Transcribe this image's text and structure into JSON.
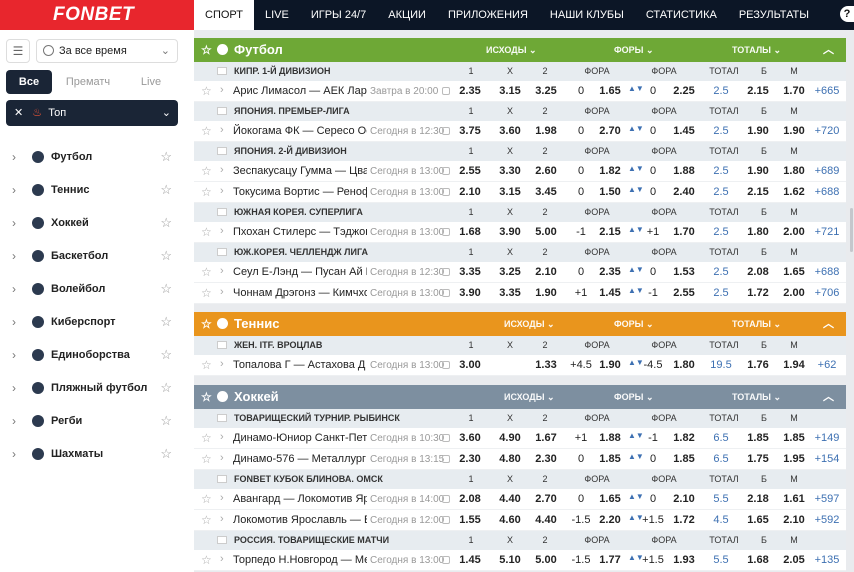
{
  "brand": {
    "name": "FONBET",
    "accent": "#e8262d",
    "dark": "#0c1626"
  },
  "nav": [
    "СПОРТ",
    "LIVE",
    "ИГРЫ 24/7",
    "АКЦИИ",
    "ПРИЛОЖЕНИЯ",
    "НАШИ КЛУБЫ",
    "СТАТИСТИКА",
    "РЕЗУЛЬТАТЫ"
  ],
  "nav_active": "СПОРТ",
  "nav_extra": "?",
  "sidebar": {
    "period": "За все время",
    "tabs": [
      "Все",
      "Прематч",
      "Live"
    ],
    "active_tab": "Все",
    "top_label": "Топ",
    "sports": [
      "Футбол",
      "Теннис",
      "Хоккей",
      "Баскетбол",
      "Волейбол",
      "Киберспорт",
      "Единоборства",
      "Пляжный футбол",
      "Регби",
      "Шахматы"
    ]
  },
  "headers": {
    "outcomes": "ИСХОДЫ",
    "handicaps": "ФОРЫ",
    "totals": "ТОТАЛЫ"
  },
  "cols": [
    "1",
    "X",
    "2",
    "ФОРА 1",
    "ФОРА 2",
    "ТОТАЛ",
    "Б",
    "М"
  ],
  "sections": [
    {
      "title": "Футбол",
      "color": "#6ea836",
      "leagues": [
        {
          "name": "КИПР. 1-Й ДИВИЗИОН",
          "events": [
            {
              "teams": "Арис Лимасол — АЕК Ларнака",
              "time": "Завтра в 20:00",
              "c1": "2.35",
              "x": "3.15",
              "c2": "3.25",
              "h1": "0",
              "f1": "1.65",
              "h2": "0",
              "f2": "2.25",
              "tot": "2.5",
              "b": "2.15",
              "m": "1.70",
              "more": "+665"
            }
          ]
        },
        {
          "name": "ЯПОНИЯ. ПРЕМЬЕР-ЛИГА",
          "events": [
            {
              "teams": "Йокогама ФК — Сересо Осака",
              "time": "Сегодня в 12:30",
              "c1": "3.75",
              "x": "3.60",
              "c2": "1.98",
              "h1": "0",
              "f1": "2.70",
              "h2": "0",
              "f2": "1.45",
              "tot": "2.5",
              "b": "1.90",
              "m": "1.90",
              "more": "+720"
            }
          ]
        },
        {
          "name": "ЯПОНИЯ. 2-Й ДИВИЗИОН",
          "events": [
            {
              "teams": "Зеспакусацу Гумма — Цвайген",
              "time": "Сегодня в 13:00",
              "c1": "2.55",
              "x": "3.30",
              "c2": "2.60",
              "h1": "0",
              "f1": "1.82",
              "h2": "0",
              "f2": "1.88",
              "tot": "2.5",
              "b": "1.90",
              "m": "1.80",
              "more": "+689"
            },
            {
              "teams": "Токусима Вортис — Ренофа",
              "time": "Сегодня в 13:00",
              "c1": "2.10",
              "x": "3.15",
              "c2": "3.45",
              "h1": "0",
              "f1": "1.50",
              "h2": "0",
              "f2": "2.40",
              "tot": "2.5",
              "b": "2.15",
              "m": "1.62",
              "more": "+688"
            }
          ]
        },
        {
          "name": "ЮЖНАЯ КОРЕЯ. СУПЕРЛИГА",
          "events": [
            {
              "teams": "Пхохан Стилерс — Тэджон Си",
              "time": "Сегодня в 13:00",
              "c1": "1.68",
              "x": "3.90",
              "c2": "5.00",
              "h1": "-1",
              "f1": "2.15",
              "h2": "+1",
              "f2": "1.70",
              "tot": "2.5",
              "b": "1.80",
              "m": "2.00",
              "more": "+721"
            }
          ]
        },
        {
          "name": "ЮЖ.КОРЕЯ. ЧЕЛЛЕНДЖ ЛИГА",
          "events": [
            {
              "teams": "Сеул Е-Лэнд — Пусан Ай Парк",
              "time": "Сегодня в 12:30",
              "c1": "3.35",
              "x": "3.25",
              "c2": "2.10",
              "h1": "0",
              "f1": "2.35",
              "h2": "0",
              "f2": "1.53",
              "tot": "2.5",
              "b": "2.08",
              "m": "1.65",
              "more": "+688"
            },
            {
              "teams": "Чоннам Дрэгонз — Кимчхон",
              "time": "Сегодня в 13:00",
              "c1": "3.90",
              "x": "3.35",
              "c2": "1.90",
              "h1": "+1",
              "f1": "1.45",
              "h2": "-1",
              "f2": "2.55",
              "tot": "2.5",
              "b": "1.72",
              "m": "2.00",
              "more": "+706"
            }
          ]
        }
      ]
    },
    {
      "title": "Теннис",
      "color": "#e9951d",
      "leagues": [
        {
          "name": "ЖЕН. ITF. ВРОЦЛАВ",
          "events": [
            {
              "teams": "Топалова Г — Астахова Д",
              "time": "Сегодня в 13:00",
              "c1": "3.00",
              "x": "",
              "c2": "1.33",
              "h1": "+4.5",
              "f1": "1.90",
              "h2": "-4.5",
              "f2": "1.80",
              "tot": "19.5",
              "b": "1.76",
              "m": "1.94",
              "more": "+62"
            }
          ]
        }
      ]
    },
    {
      "title": "Хоккей",
      "color": "#7d8fa0",
      "leagues": [
        {
          "name": "ТОВАРИЩЕСКИЙ ТУРНИР. РЫБИНСК",
          "events": [
            {
              "teams": "Динамо-Юниор Санкт-Петербург",
              "time": "Сегодня в 10:30",
              "c1": "3.60",
              "x": "4.90",
              "c2": "1.67",
              "h1": "+1",
              "f1": "1.88",
              "h2": "-1",
              "f2": "1.82",
              "tot": "6.5",
              "b": "1.85",
              "m": "1.85",
              "more": "+149"
            },
            {
              "teams": "Динамо-576 — Металлург ВО",
              "time": "Сегодня в 13:15",
              "c1": "2.30",
              "x": "4.80",
              "c2": "2.30",
              "h1": "0",
              "f1": "1.85",
              "h2": "0",
              "f2": "1.85",
              "tot": "6.5",
              "b": "1.75",
              "m": "1.95",
              "more": "+154"
            }
          ]
        },
        {
          "name": "FONBET КУБОК БЛИНОВА. ОМСК",
          "events": [
            {
              "teams": "Авангард — Локомотив Ярославль",
              "time": "Сегодня в 14:00",
              "c1": "2.08",
              "x": "4.40",
              "c2": "2.70",
              "h1": "0",
              "f1": "1.65",
              "h2": "0",
              "f2": "2.10",
              "tot": "5.5",
              "b": "2.18",
              "m": "1.61",
              "more": "+597"
            },
            {
              "teams": "Локомотив Ярославль — Барыс",
              "time": "Сегодня в 12:00",
              "c1": "1.55",
              "x": "4.60",
              "c2": "4.40",
              "h1": "-1.5",
              "f1": "2.20",
              "h2": "+1.5",
              "f2": "1.72",
              "tot": "4.5",
              "b": "1.65",
              "m": "2.10",
              "more": "+592"
            }
          ]
        },
        {
          "name": "РОССИЯ. ТОВАРИЩЕСКИЕ МАТЧИ",
          "events": [
            {
              "teams": "Торпедо Н.Новгород — Металлург",
              "time": "Сегодня в 13:00",
              "c1": "1.45",
              "x": "5.10",
              "c2": "5.00",
              "h1": "-1.5",
              "f1": "1.77",
              "h2": "+1.5",
              "f2": "1.93",
              "tot": "5.5",
              "b": "1.68",
              "m": "2.05",
              "more": "+135"
            }
          ]
        }
      ]
    }
  ]
}
